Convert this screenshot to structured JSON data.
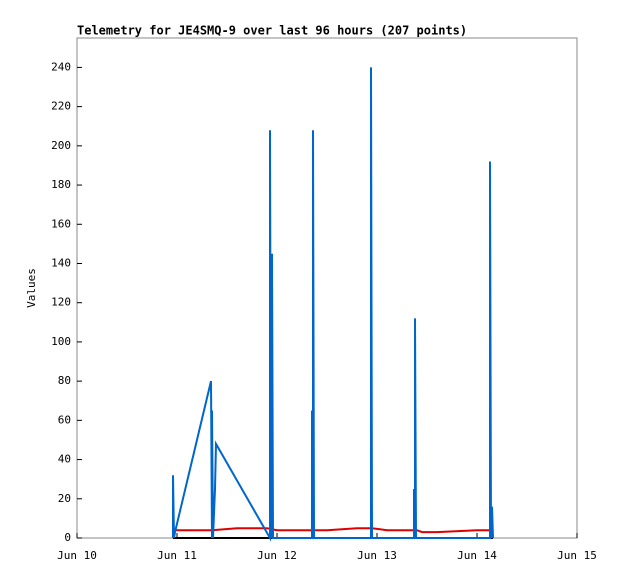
{
  "chart_data": {
    "type": "line",
    "title": "Telemetry for JE4SMQ-9 over last 96 hours (207 points)",
    "y_label": "Values",
    "xlim": [
      10,
      15
    ],
    "xticks": [
      {
        "value": 10,
        "label": "Jun 10"
      },
      {
        "value": 11,
        "label": "Jun 11"
      },
      {
        "value": 12,
        "label": "Jun 12"
      },
      {
        "value": 13,
        "label": "Jun 13"
      },
      {
        "value": 14,
        "label": "Jun 14"
      },
      {
        "value": 15,
        "label": "Jun 15"
      }
    ],
    "ylim": [
      0,
      255
    ],
    "yticks": [
      0,
      20,
      40,
      60,
      80,
      100,
      120,
      140,
      160,
      180,
      200,
      220,
      240
    ],
    "series": [
      {
        "color": "#000000",
        "x": [
          10.96,
          14.16
        ],
        "values": [
          0,
          0
        ]
      },
      {
        "color": "#dd0000",
        "x": [
          10.96,
          11.35,
          11.6,
          11.9,
          12.0,
          12.5,
          12.8,
          12.95,
          13.1,
          13.4,
          13.45,
          13.6,
          14.0,
          14.16
        ],
        "values": [
          4,
          4,
          5,
          5,
          4,
          4,
          5,
          5,
          4,
          4,
          3,
          3,
          4,
          4
        ]
      },
      {
        "color": "#0066cc",
        "x": [
          10.96,
          10.96,
          10.97,
          10.98,
          11.34,
          11.35,
          11.35,
          11.36,
          11.38,
          11.39,
          11.93,
          11.93,
          11.94,
          11.95,
          11.96,
          12.35,
          12.35,
          12.36,
          12.36,
          12.37,
          12.94,
          12.94,
          12.95,
          13.37,
          13.37,
          13.38,
          13.38,
          13.39,
          14.13,
          14.13,
          14.14,
          14.15,
          14.16
        ],
        "values": [
          0,
          32,
          0,
          3,
          80,
          0,
          65,
          0,
          25,
          48,
          0,
          208,
          0,
          145,
          0,
          0,
          65,
          0,
          208,
          0,
          0,
          240,
          0,
          0,
          25,
          0,
          112,
          0,
          0,
          192,
          0,
          16,
          0
        ]
      }
    ]
  }
}
